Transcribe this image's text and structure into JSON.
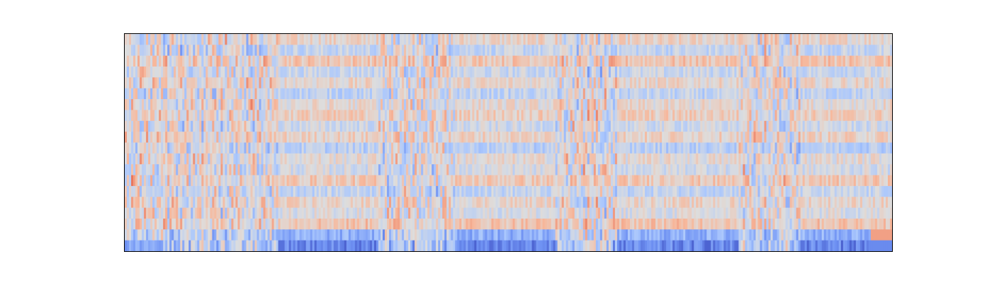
{
  "chart_data": {
    "type": "heatmap",
    "title": "",
    "xlabel": "",
    "ylabel": "",
    "axes_visible": false,
    "frame": true,
    "colormap": "coolwarm",
    "colormap_stops": [
      "#3b4cc0",
      "#6f92f3",
      "#aac7fd",
      "#dddddd",
      "#f7b89c",
      "#e7745b",
      "#b40426"
    ],
    "value_range": [
      -1,
      1
    ],
    "n_rows": 20,
    "n_cols": 360,
    "row_bias": [
      0.06,
      -0.1,
      0.14,
      -0.08,
      0.05,
      -0.12,
      0.03,
      0.1,
      -0.06,
      0.08,
      -0.14,
      0.02,
      -0.04,
      0.12,
      -0.1,
      0.06,
      -0.02,
      0.15,
      -0.3,
      -0.45
    ],
    "textured_column_bands": [
      [
        0.0,
        0.2
      ],
      [
        0.33,
        0.43
      ],
      [
        0.56,
        0.64
      ],
      [
        0.8,
        0.88
      ]
    ],
    "row_stripe_segments": [
      [
        0.2,
        0.33
      ],
      [
        0.43,
        0.56
      ],
      [
        0.64,
        0.8
      ],
      [
        0.88,
        1.0
      ]
    ],
    "last_rows_edge_highlight": {
      "position": "right",
      "upper_row": "warm",
      "lower_row": "cool"
    }
  }
}
